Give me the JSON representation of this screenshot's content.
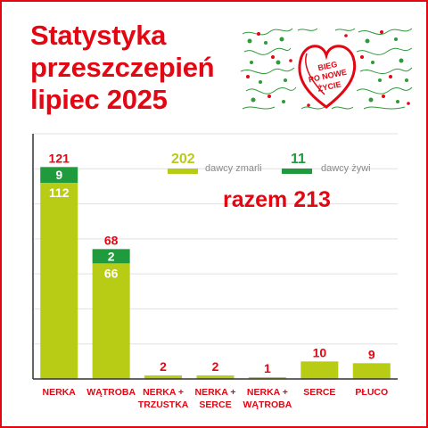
{
  "title": {
    "line1": "Statystyka",
    "line2": "przeszczepień",
    "line3": "lipiec 2025"
  },
  "logo": {
    "line1": "BIEG",
    "line2": "PO NOWE",
    "line3": "ŻYCIE",
    "icon": "heart-logo-icon"
  },
  "legend": {
    "deceased": {
      "value": "202",
      "label": "dawcy zmarli"
    },
    "living": {
      "value": "11",
      "label": "dawcy żywi"
    }
  },
  "total_label": "razem 213",
  "colors": {
    "brand_red": "#e30613",
    "deceased": "#b8cc16",
    "living": "#1f9a3d",
    "grid": "#e0e0e0",
    "axis": "#333333",
    "legend_text": "#8a8a8a"
  },
  "chart_data": {
    "type": "bar",
    "stacked": true,
    "categories": [
      [
        "NERKA"
      ],
      [
        "WĄTROBA"
      ],
      [
        "NERKA +",
        "TRZUSTKA"
      ],
      [
        "NERKA +",
        "SERCE"
      ],
      [
        "NERKA +",
        "WĄTROBA"
      ],
      [
        "SERCE"
      ],
      [
        "PŁUCO"
      ]
    ],
    "series": [
      {
        "name": "dawcy zmarli",
        "color": "#b8cc16",
        "values": [
          112,
          66,
          2,
          2,
          1,
          10,
          9
        ]
      },
      {
        "name": "dawcy żywi",
        "color": "#1f9a3d",
        "values": [
          9,
          2,
          0,
          0,
          0,
          0,
          0
        ]
      }
    ],
    "totals": [
      121,
      68,
      2,
      2,
      1,
      10,
      9
    ],
    "ylim": [
      0,
      140
    ],
    "grid": true,
    "xlabel": "",
    "ylabel": ""
  }
}
